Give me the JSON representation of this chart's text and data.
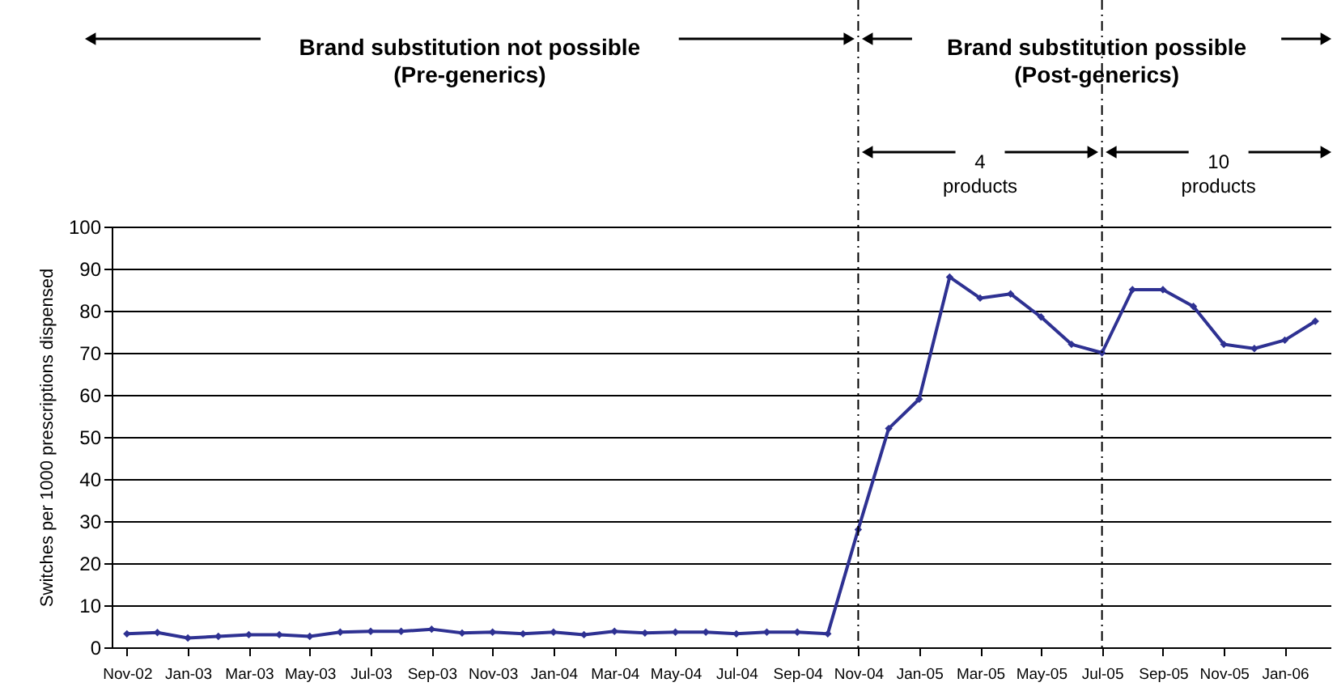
{
  "chart_data": {
    "type": "line",
    "ylabel": "Switches per 1000 prescriptions dispensed",
    "categories": [
      "Nov-02",
      null,
      "Jan-03",
      null,
      "Mar-03",
      null,
      "May-03",
      null,
      "Jul-03",
      null,
      "Sep-03",
      null,
      "Nov-03",
      null,
      "Jan-04",
      null,
      "Mar-04",
      null,
      "May-04",
      null,
      "Jul-04",
      null,
      "Sep-04",
      null,
      "Nov-04",
      null,
      "Jan-05",
      null,
      "Mar-05",
      null,
      "May-05",
      null,
      "Jul-05",
      null,
      "Sep-05",
      null,
      "Nov-05",
      null,
      "Jan-06",
      null
    ],
    "series": [
      {
        "color": "#2e3192",
        "values": [
          3.2,
          3.5,
          2.2,
          2.6,
          3,
          3,
          2.6,
          3.6,
          3.8,
          3.8,
          4.3,
          3.4,
          3.6,
          3.2,
          3.6,
          3,
          3.8,
          3.4,
          3.6,
          3.6,
          3.2,
          3.6,
          3.6,
          3.2,
          28,
          52,
          59,
          88,
          83,
          84,
          78.5,
          72,
          70,
          85,
          85,
          81,
          72,
          71,
          73,
          77.5
        ]
      }
    ],
    "ylim": [
      0,
      100
    ],
    "yticks": [
      0,
      10,
      20,
      30,
      40,
      50,
      60,
      70,
      80,
      90,
      100
    ],
    "grid": "y",
    "marker": "diamond",
    "line_style": "solid",
    "ref_lines": [
      {
        "axis": "x",
        "value": "Nov-04",
        "line_style": "dashed",
        "color": "#000000"
      },
      {
        "axis": "x",
        "value": "Jul-05",
        "line_style": "dashed",
        "color": "#000000"
      }
    ],
    "annotations": [
      "Brand substitution not possible\n(Pre-generics)",
      "Brand substitution possible\n(Post-generics)",
      "4\nproducts",
      "10\nproducts"
    ]
  }
}
